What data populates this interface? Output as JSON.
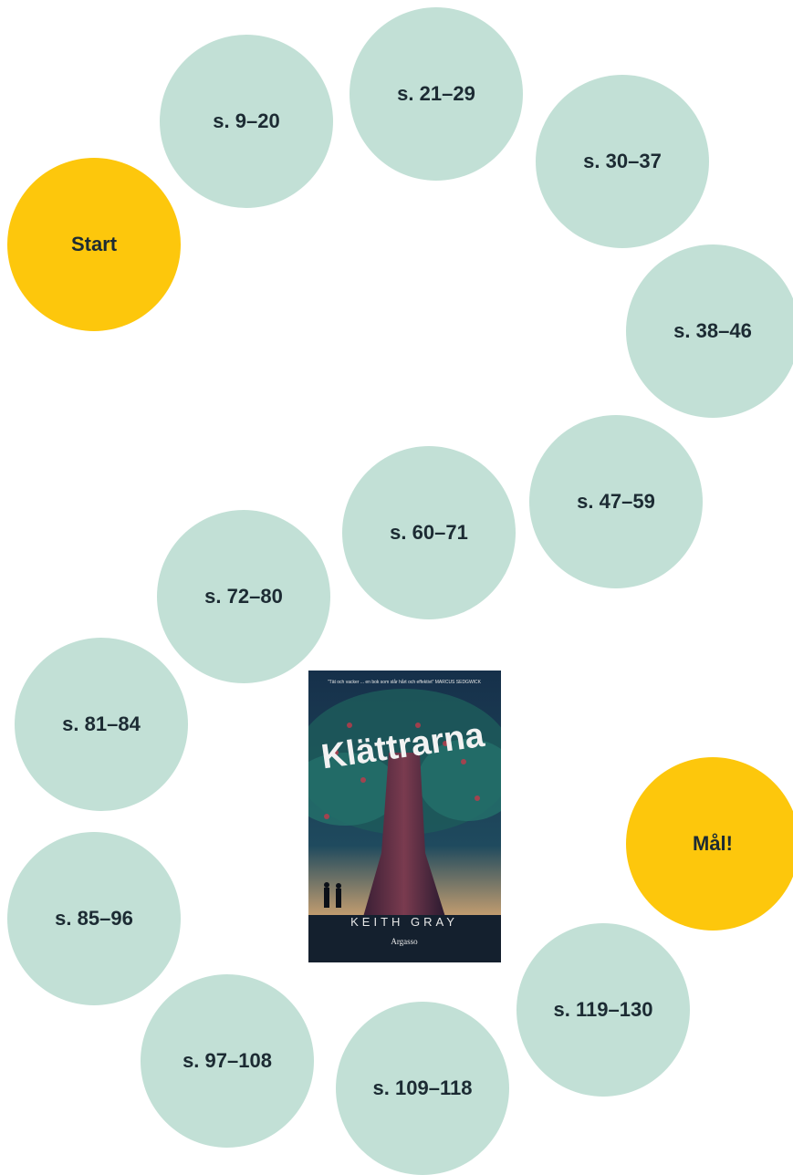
{
  "path": {
    "start": "Start",
    "steps": [
      "s. 9–20",
      "s. 21–29",
      "s. 30–37",
      "s. 38–46",
      "s. 47–59",
      "s. 60–71",
      "s. 72–80",
      "s. 81–84",
      "s. 85–96",
      "s. 97–108",
      "s. 109–118",
      "s. 119–130"
    ],
    "finish": "Mål!"
  },
  "book": {
    "quote": "”Tät och vacker ... en bok som slår hårt och effektivt” MARCUS SEDGWICK",
    "title": "Klättrarna",
    "author": "KEITH GRAY",
    "publisher": "Argasso"
  }
}
